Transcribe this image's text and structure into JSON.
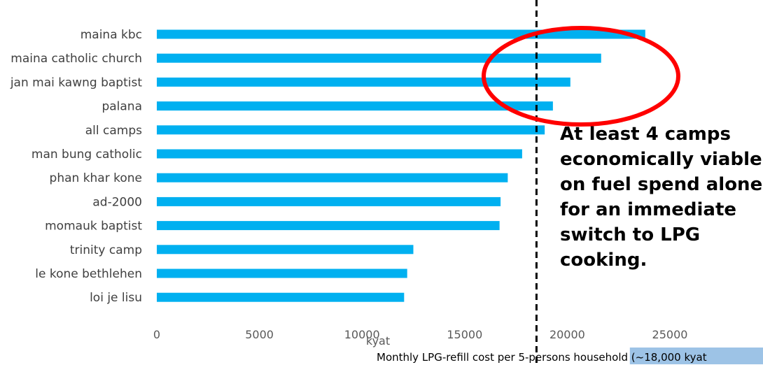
{
  "chart_data": {
    "type": "bar",
    "orientation": "horizontal",
    "categories": [
      "maina kbc",
      "maina catholic church",
      "jan mai kawng baptist",
      "palana",
      "all camps",
      "man bung catholic",
      "phan khar kone",
      "ad-2000",
      "momauk baptist",
      "trinity camp",
      "le kone bethlehen",
      "loi je lisu"
    ],
    "values": [
      23800,
      21650,
      20150,
      19300,
      18900,
      17800,
      17100,
      16750,
      16700,
      12500,
      12200,
      12050
    ],
    "xlabel": "kyat",
    "xlim": [
      0,
      25000
    ],
    "xticks": [
      "0",
      "5000",
      "10000",
      "15000",
      "20000",
      "25000"
    ],
    "grid": false,
    "bar_color": "#00b0f0",
    "threshold": {
      "value": 18500,
      "style": "dashed",
      "label": "Monthly LPG-refill cost per 5-persons household (~18,000 kyat",
      "label_highlight_color": "#9dc3e6"
    },
    "highlight_ellipse_color": "#ff0000",
    "annotation": "At least 4 camps economically viable on fuel spend alone for an immediate switch to LPG cooking."
  }
}
